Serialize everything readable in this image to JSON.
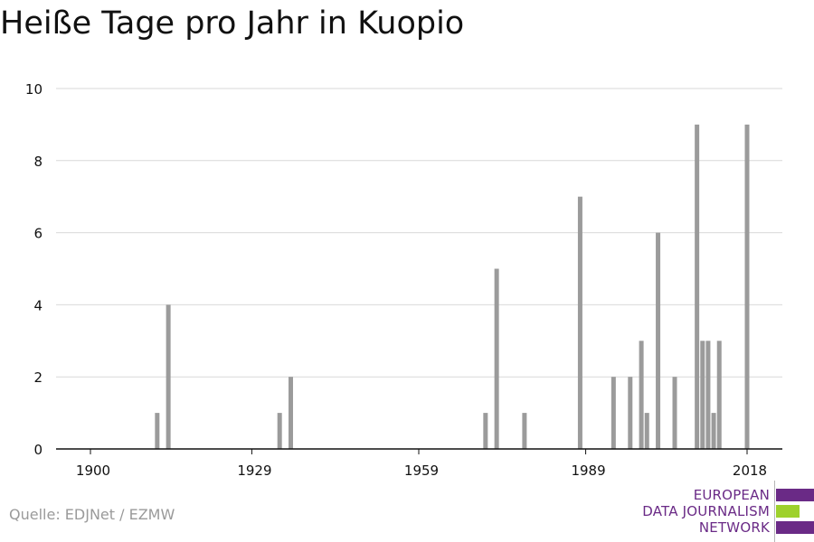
{
  "title": "Heiße Tage pro Jahr in Kuopio",
  "source": "Quelle: EDJNet / EZMW",
  "logo": {
    "line1": "EUROPEAN",
    "line2": "DATA JOURNALISM",
    "line3": "NETWORK",
    "color_purple": "#6a2a86",
    "color_green": "#9ed12c"
  },
  "colors": {
    "bar": "#9b9b9b",
    "grid": "#d9d9d9",
    "axis": "#111111",
    "text": "#111111"
  },
  "chart_data": {
    "type": "bar",
    "title": "Heiße Tage pro Jahr in Kuopio",
    "xlabel": "",
    "ylabel": "",
    "xlim": [
      1900,
      2018
    ],
    "ylim": [
      0,
      10
    ],
    "x_ticks": [
      1900,
      1929,
      1959,
      1989,
      2018
    ],
    "y_ticks": [
      0,
      2,
      4,
      6,
      8,
      10
    ],
    "grid": true,
    "x": [
      1912,
      1914,
      1934,
      1936,
      1971,
      1973,
      1978,
      1988,
      1994,
      1997,
      1999,
      2000,
      2002,
      2005,
      2009,
      2010,
      2011,
      2012,
      2013,
      2018
    ],
    "values": [
      1,
      4,
      1,
      2,
      1,
      5,
      1,
      7,
      2,
      2,
      3,
      1,
      6,
      2,
      9,
      3,
      3,
      1,
      3,
      9
    ]
  }
}
